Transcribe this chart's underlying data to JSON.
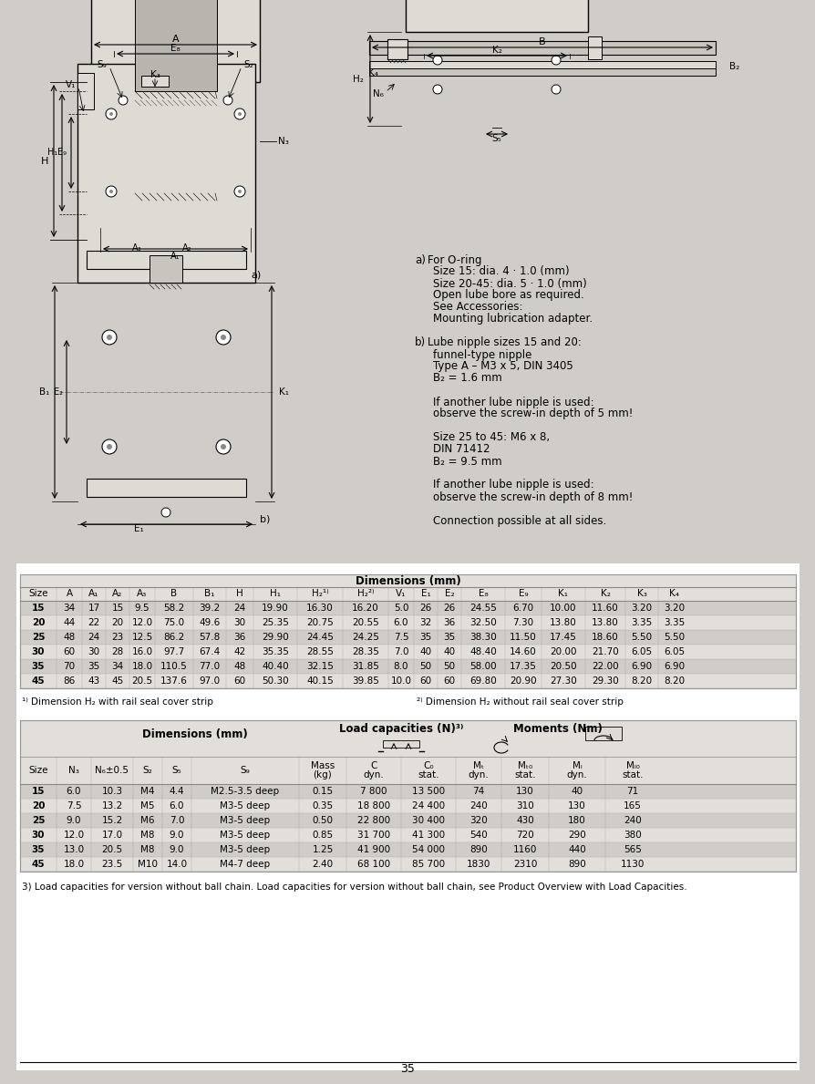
{
  "bg_color": "#d0cdc8",
  "table_bg": "#e2dfda",
  "row_shade": "#d0cdc8",
  "border_color": "#999999",
  "text_color": "#1a1a1a",
  "table1_rows": [
    [
      "15",
      "34",
      "17",
      "15",
      "9.5",
      "58.2",
      "39.2",
      "24",
      "19.90",
      "16.30",
      "16.20",
      "5.0",
      "26",
      "26",
      "24.55",
      "6.70",
      "10.00",
      "11.60",
      "3.20",
      "3.20"
    ],
    [
      "20",
      "44",
      "22",
      "20",
      "12.0",
      "75.0",
      "49.6",
      "30",
      "25.35",
      "20.75",
      "20.55",
      "6.0",
      "32",
      "36",
      "32.50",
      "7.30",
      "13.80",
      "13.80",
      "3.35",
      "3.35"
    ],
    [
      "25",
      "48",
      "24",
      "23",
      "12.5",
      "86.2",
      "57.8",
      "36",
      "29.90",
      "24.45",
      "24.25",
      "7.5",
      "35",
      "35",
      "38.30",
      "11.50",
      "17.45",
      "18.60",
      "5.50",
      "5.50"
    ],
    [
      "30",
      "60",
      "30",
      "28",
      "16.0",
      "97.7",
      "67.4",
      "42",
      "35.35",
      "28.55",
      "28.35",
      "7.0",
      "40",
      "40",
      "48.40",
      "14.60",
      "20.00",
      "21.70",
      "6.05",
      "6.05"
    ],
    [
      "35",
      "70",
      "35",
      "34",
      "18.0",
      "110.5",
      "77.0",
      "48",
      "40.40",
      "32.15",
      "31.85",
      "8.0",
      "50",
      "50",
      "58.00",
      "17.35",
      "20.50",
      "22.00",
      "6.90",
      "6.90"
    ],
    [
      "45",
      "86",
      "43",
      "45",
      "20.5",
      "137.6",
      "97.0",
      "60",
      "50.30",
      "40.15",
      "39.85",
      "10.0",
      "60",
      "60",
      "69.80",
      "20.90",
      "27.30",
      "29.30",
      "8.20",
      "8.20"
    ]
  ],
  "table1_shaded": [
    0,
    2,
    4
  ],
  "table2_rows": [
    [
      "15",
      "6.0",
      "10.3",
      "M4",
      "4.4",
      "M2.5-3.5 deep",
      "0.15",
      "7 800",
      "13 500",
      "74",
      "130",
      "40",
      "71"
    ],
    [
      "20",
      "7.5",
      "13.2",
      "M5",
      "6.0",
      "M3-5 deep",
      "0.35",
      "18 800",
      "24 400",
      "240",
      "310",
      "130",
      "165"
    ],
    [
      "25",
      "9.0",
      "15.2",
      "M6",
      "7.0",
      "M3-5 deep",
      "0.50",
      "22 800",
      "30 400",
      "320",
      "430",
      "180",
      "240"
    ],
    [
      "30",
      "12.0",
      "17.0",
      "M8",
      "9.0",
      "M3-5 deep",
      "0.85",
      "31 700",
      "41 300",
      "540",
      "720",
      "290",
      "380"
    ],
    [
      "35",
      "13.0",
      "20.5",
      "M8",
      "9.0",
      "M3-5 deep",
      "1.25",
      "41 900",
      "54 000",
      "890",
      "1160",
      "440",
      "565"
    ],
    [
      "45",
      "18.0",
      "23.5",
      "M10",
      "14.0",
      "M4-7 deep",
      "2.40",
      "68 100",
      "85 700",
      "1830",
      "2310",
      "890",
      "1130"
    ]
  ],
  "table2_shaded": [
    0,
    2,
    4
  ],
  "footnote3": "3) Load capacities for version without ball chain. Load capacities for version without ball chain, see Product Overview with Load Capacities.",
  "page_number": "35"
}
